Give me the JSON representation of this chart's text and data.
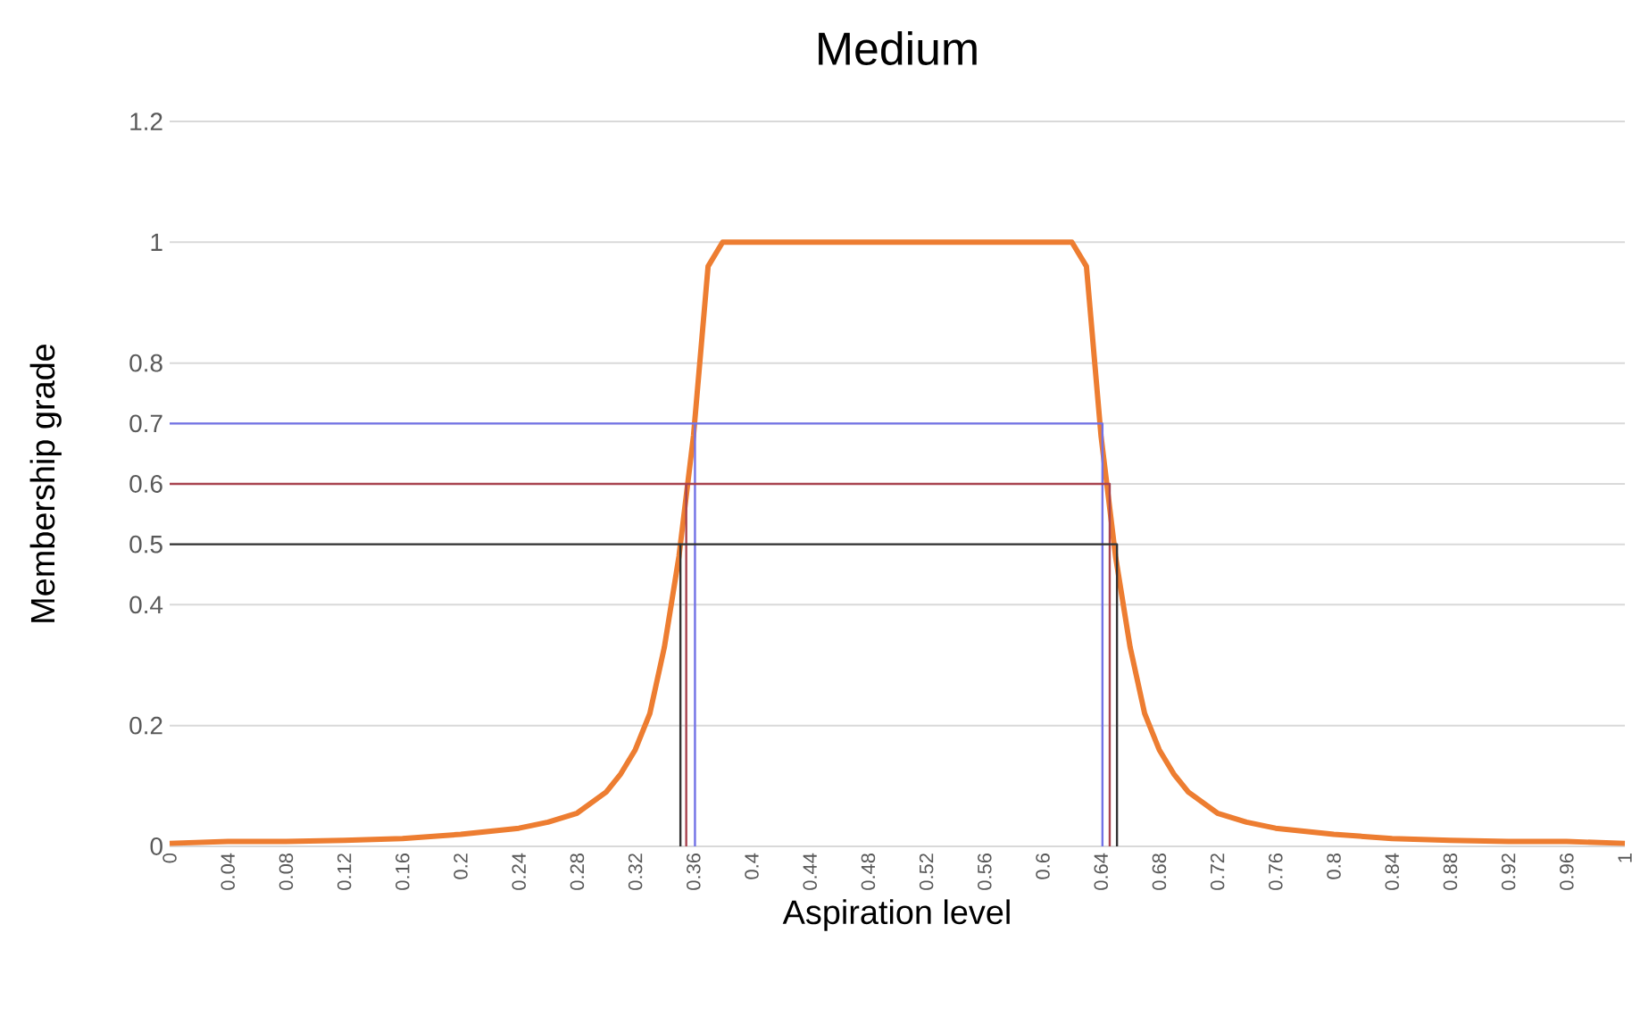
{
  "chart_data": {
    "type": "line",
    "title": "Medium",
    "xlabel": "Aspiration level",
    "ylabel": "Membership grade",
    "xlim": [
      0,
      1
    ],
    "ylim": [
      0,
      1.2
    ],
    "xticks": [
      0,
      0.04,
      0.08,
      0.12,
      0.16,
      0.2,
      0.24,
      0.28,
      0.32,
      0.36,
      0.4,
      0.44,
      0.48,
      0.52,
      0.56,
      0.6,
      0.64,
      0.68,
      0.72,
      0.76,
      0.8,
      0.84,
      0.88,
      0.92,
      0.96,
      1
    ],
    "yticks": [
      0,
      0.2,
      0.4,
      0.5,
      0.6,
      0.7,
      0.8,
      1,
      1.2
    ],
    "grid": "y",
    "series": [
      {
        "color": "#ed7d31",
        "x": [
          0,
          0.04,
          0.08,
          0.12,
          0.16,
          0.2,
          0.24,
          0.26,
          0.28,
          0.3,
          0.31,
          0.32,
          0.33,
          0.34,
          0.35,
          0.36,
          0.37,
          0.38,
          0.62,
          0.63,
          0.64,
          0.65,
          0.66,
          0.67,
          0.68,
          0.69,
          0.7,
          0.72,
          0.74,
          0.76,
          0.8,
          0.84,
          0.88,
          0.92,
          0.96,
          1
        ],
        "values": [
          0.005,
          0.008,
          0.008,
          0.01,
          0.013,
          0.02,
          0.03,
          0.04,
          0.055,
          0.09,
          0.12,
          0.16,
          0.22,
          0.33,
          0.48,
          0.68,
          0.96,
          1,
          1,
          0.96,
          0.68,
          0.48,
          0.33,
          0.22,
          0.16,
          0.12,
          0.09,
          0.055,
          0.04,
          0.03,
          0.02,
          0.013,
          0.01,
          0.008,
          0.008,
          0.005
        ]
      },
      {
        "color": "#7272e6",
        "x": [
          0.361,
          0.361,
          0.641,
          0.641
        ],
        "values": [
          0,
          0.7,
          0.7,
          0
        ]
      },
      {
        "color": "#7272e6",
        "x": [
          0,
          0.361
        ],
        "values": [
          0.7,
          0.7
        ]
      },
      {
        "color": "#a8434f",
        "x": [
          0.355,
          0.355,
          0.646,
          0.646
        ],
        "values": [
          0,
          0.6,
          0.6,
          0
        ]
      },
      {
        "color": "#a8434f",
        "x": [
          0,
          0.355
        ],
        "values": [
          0.6,
          0.6
        ]
      },
      {
        "color": "#333333",
        "x": [
          0.351,
          0.351,
          0.651,
          0.651
        ],
        "values": [
          0,
          0.5,
          0.5,
          0
        ]
      },
      {
        "color": "#333333",
        "x": [
          0,
          0.351
        ],
        "values": [
          0.5,
          0.5
        ]
      }
    ]
  }
}
